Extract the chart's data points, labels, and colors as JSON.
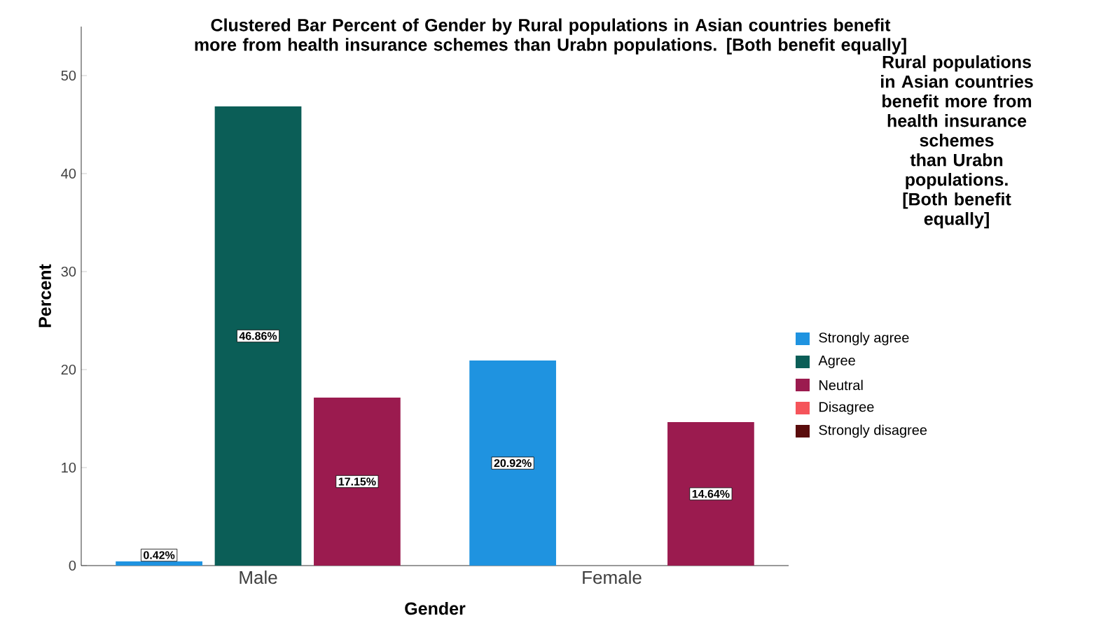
{
  "chart_data": {
    "type": "bar",
    "title": "Clustered Bar Percent of Gender by Rural populations in Asian countries benefit more from health insurance schemes than Urabn populations. [Both benefit equally]",
    "xlabel": "Gender",
    "ylabel": "Percent",
    "legend_title": "Rural populations in Asian countries benefit more from health insurance schemes than Urabn populations. [Both benefit equally]",
    "categories": [
      "Male",
      "Female"
    ],
    "series": [
      {
        "name": "Strongly agree",
        "color": "#1f93e0",
        "values": [
          0.42,
          20.92
        ],
        "value_labels": [
          "0.42%",
          "20.92%"
        ]
      },
      {
        "name": "Agree",
        "color": "#0b5e57",
        "values": [
          46.86,
          null
        ],
        "value_labels": [
          "46.86%",
          null
        ]
      },
      {
        "name": "Neutral",
        "color": "#9b1b4f",
        "values": [
          17.15,
          14.64
        ],
        "value_labels": [
          "17.15%",
          "14.64%"
        ]
      },
      {
        "name": "Disagree",
        "color": "#f5545a",
        "values": [
          null,
          null
        ]
      },
      {
        "name": "Strongly disagree",
        "color": "#5a0c0c",
        "values": [
          null,
          null
        ]
      }
    ],
    "ylim": [
      0,
      55
    ],
    "yticks": [
      0,
      10,
      20,
      30,
      40,
      50
    ],
    "legend": "right",
    "grid": false
  }
}
